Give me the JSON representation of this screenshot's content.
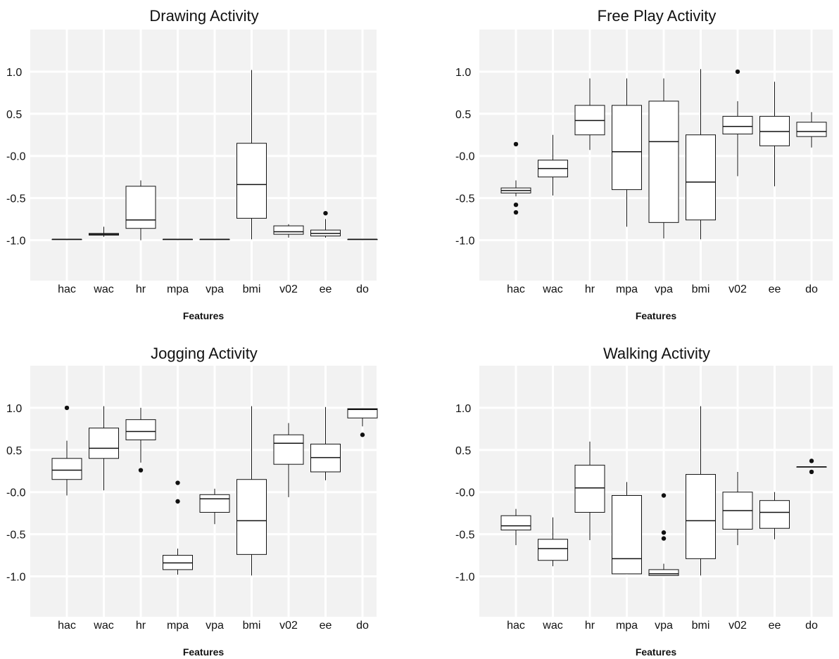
{
  "chart_data": [
    {
      "type": "boxplot",
      "title": "Drawing Activity",
      "xlabel": "Features",
      "ylabel": "",
      "categories": [
        "hac",
        "wac",
        "hr",
        "mpa",
        "vpa",
        "bmi",
        "v02",
        "ee",
        "do"
      ],
      "ylim": [
        -1.48,
        1.5
      ],
      "yticks": [
        1.0,
        0.5,
        0.0,
        -0.5,
        -1.0
      ],
      "ytick_labels": [
        "1.0",
        "0.5",
        "-0.0",
        "-0.5",
        "-1.0"
      ],
      "grid": true,
      "boxes": [
        {
          "category": "hac",
          "min": -0.99,
          "q1": -0.99,
          "median": -0.99,
          "q3": -0.99,
          "max": -0.99,
          "outliers": []
        },
        {
          "category": "wac",
          "min": -0.96,
          "q1": -0.94,
          "median": -0.93,
          "q3": -0.92,
          "max": -0.84,
          "outliers": []
        },
        {
          "category": "hr",
          "min": -1.0,
          "q1": -0.86,
          "median": -0.76,
          "q3": -0.36,
          "max": -0.29,
          "outliers": []
        },
        {
          "category": "mpa",
          "min": -0.99,
          "q1": -0.99,
          "median": -0.99,
          "q3": -0.99,
          "max": -0.99,
          "outliers": []
        },
        {
          "category": "vpa",
          "min": -0.99,
          "q1": -0.99,
          "median": -0.99,
          "q3": -0.99,
          "max": -0.99,
          "outliers": []
        },
        {
          "category": "bmi",
          "min": -0.99,
          "q1": -0.74,
          "median": -0.34,
          "q3": 0.15,
          "max": 1.02,
          "outliers": []
        },
        {
          "category": "v02",
          "min": -0.97,
          "q1": -0.93,
          "median": -0.9,
          "q3": -0.83,
          "max": -0.81,
          "outliers": []
        },
        {
          "category": "ee",
          "min": -0.97,
          "q1": -0.95,
          "median": -0.92,
          "q3": -0.88,
          "max": -0.75,
          "outliers": [
            -0.68
          ]
        },
        {
          "category": "do",
          "min": -0.99,
          "q1": -0.99,
          "median": -0.99,
          "q3": -0.99,
          "max": -0.99,
          "outliers": []
        }
      ]
    },
    {
      "type": "boxplot",
      "title": "Free Play Activity",
      "xlabel": "Features",
      "ylabel": "",
      "categories": [
        "hac",
        "wac",
        "hr",
        "mpa",
        "vpa",
        "bmi",
        "v02",
        "ee",
        "do"
      ],
      "ylim": [
        -1.48,
        1.5
      ],
      "yticks": [
        1.0,
        0.5,
        0.0,
        -0.5,
        -1.0
      ],
      "ytick_labels": [
        "1.0",
        "0.5",
        "-0.0",
        "-0.5",
        "-1.0"
      ],
      "grid": true,
      "boxes": [
        {
          "category": "hac",
          "min": -0.48,
          "q1": -0.44,
          "median": -0.41,
          "q3": -0.38,
          "max": -0.29,
          "outliers": [
            0.14,
            -0.58,
            -0.67
          ]
        },
        {
          "category": "wac",
          "min": -0.47,
          "q1": -0.25,
          "median": -0.15,
          "q3": -0.05,
          "max": 0.25,
          "outliers": []
        },
        {
          "category": "hr",
          "min": 0.07,
          "q1": 0.25,
          "median": 0.42,
          "q3": 0.6,
          "max": 0.92,
          "outliers": []
        },
        {
          "category": "mpa",
          "min": -0.84,
          "q1": -0.4,
          "median": 0.05,
          "q3": 0.6,
          "max": 0.92,
          "outliers": []
        },
        {
          "category": "vpa",
          "min": -0.98,
          "q1": -0.79,
          "median": 0.17,
          "q3": 0.65,
          "max": 0.92,
          "outliers": []
        },
        {
          "category": "bmi",
          "min": -0.99,
          "q1": -0.76,
          "median": -0.31,
          "q3": 0.25,
          "max": 1.03,
          "outliers": []
        },
        {
          "category": "v02",
          "min": -0.24,
          "q1": 0.26,
          "median": 0.35,
          "q3": 0.47,
          "max": 0.65,
          "outliers": [
            1.0
          ]
        },
        {
          "category": "ee",
          "min": -0.36,
          "q1": 0.12,
          "median": 0.29,
          "q3": 0.47,
          "max": 0.88,
          "outliers": []
        },
        {
          "category": "do",
          "min": 0.1,
          "q1": 0.23,
          "median": 0.29,
          "q3": 0.4,
          "max": 0.52,
          "outliers": []
        }
      ]
    },
    {
      "type": "boxplot",
      "title": "Jogging Activity",
      "xlabel": "Features",
      "ylabel": "",
      "categories": [
        "hac",
        "wac",
        "hr",
        "mpa",
        "vpa",
        "bmi",
        "v02",
        "ee",
        "do"
      ],
      "ylim": [
        -1.48,
        1.5
      ],
      "yticks": [
        1.0,
        0.5,
        0.0,
        -0.5,
        -1.0
      ],
      "ytick_labels": [
        "1.0",
        "0.5",
        "-0.0",
        "-0.5",
        "-1.0"
      ],
      "grid": true,
      "boxes": [
        {
          "category": "hac",
          "min": -0.04,
          "q1": 0.15,
          "median": 0.26,
          "q3": 0.4,
          "max": 0.61,
          "outliers": [
            1.0
          ]
        },
        {
          "category": "wac",
          "min": 0.02,
          "q1": 0.4,
          "median": 0.52,
          "q3": 0.76,
          "max": 1.02,
          "outliers": []
        },
        {
          "category": "hr",
          "min": 0.35,
          "q1": 0.62,
          "median": 0.72,
          "q3": 0.86,
          "max": 1.0,
          "outliers": [
            0.26
          ]
        },
        {
          "category": "mpa",
          "min": -0.98,
          "q1": -0.92,
          "median": -0.84,
          "q3": -0.75,
          "max": -0.67,
          "outliers": [
            0.11,
            -0.11
          ]
        },
        {
          "category": "vpa",
          "min": -0.38,
          "q1": -0.24,
          "median": -0.08,
          "q3": -0.03,
          "max": 0.04,
          "outliers": []
        },
        {
          "category": "bmi",
          "min": -0.99,
          "q1": -0.74,
          "median": -0.34,
          "q3": 0.15,
          "max": 1.02,
          "outliers": []
        },
        {
          "category": "v02",
          "min": -0.06,
          "q1": 0.33,
          "median": 0.58,
          "q3": 0.68,
          "max": 0.82,
          "outliers": []
        },
        {
          "category": "ee",
          "min": 0.14,
          "q1": 0.24,
          "median": 0.41,
          "q3": 0.57,
          "max": 1.01,
          "outliers": []
        },
        {
          "category": "do",
          "min": 0.78,
          "q1": 0.88,
          "median": 0.98,
          "q3": 0.99,
          "max": 0.99,
          "outliers": [
            0.68
          ]
        }
      ]
    },
    {
      "type": "boxplot",
      "title": "Walking Activity",
      "xlabel": "Features",
      "ylabel": "",
      "categories": [
        "hac",
        "wac",
        "hr",
        "mpa",
        "vpa",
        "bmi",
        "v02",
        "ee",
        "do"
      ],
      "ylim": [
        -1.48,
        1.5
      ],
      "yticks": [
        1.0,
        0.5,
        0.0,
        -0.5,
        -1.0
      ],
      "ytick_labels": [
        "1.0",
        "0.5",
        "-0.0",
        "-0.5",
        "-1.0"
      ],
      "grid": true,
      "boxes": [
        {
          "category": "hac",
          "min": -0.63,
          "q1": -0.45,
          "median": -0.4,
          "q3": -0.28,
          "max": -0.2,
          "outliers": []
        },
        {
          "category": "wac",
          "min": -0.88,
          "q1": -0.81,
          "median": -0.67,
          "q3": -0.56,
          "max": -0.3,
          "outliers": []
        },
        {
          "category": "hr",
          "min": -0.57,
          "q1": -0.24,
          "median": 0.05,
          "q3": 0.32,
          "max": 0.6,
          "outliers": []
        },
        {
          "category": "mpa",
          "min": -0.97,
          "q1": -0.97,
          "median": -0.79,
          "q3": -0.04,
          "max": 0.12,
          "outliers": []
        },
        {
          "category": "vpa",
          "min": -0.99,
          "q1": -0.99,
          "median": -0.97,
          "q3": -0.92,
          "max": -0.85,
          "outliers": [
            -0.04,
            -0.48,
            -0.55
          ]
        },
        {
          "category": "bmi",
          "min": -0.99,
          "q1": -0.79,
          "median": -0.34,
          "q3": 0.21,
          "max": 1.02,
          "outliers": []
        },
        {
          "category": "v02",
          "min": -0.63,
          "q1": -0.44,
          "median": -0.22,
          "q3": 0.0,
          "max": 0.24,
          "outliers": []
        },
        {
          "category": "ee",
          "min": -0.56,
          "q1": -0.43,
          "median": -0.24,
          "q3": -0.1,
          "max": 0.0,
          "outliers": []
        },
        {
          "category": "do",
          "min": 0.3,
          "q1": 0.3,
          "median": 0.3,
          "q3": 0.3,
          "max": 0.3,
          "outliers": [
            0.37,
            0.24
          ]
        }
      ]
    }
  ]
}
